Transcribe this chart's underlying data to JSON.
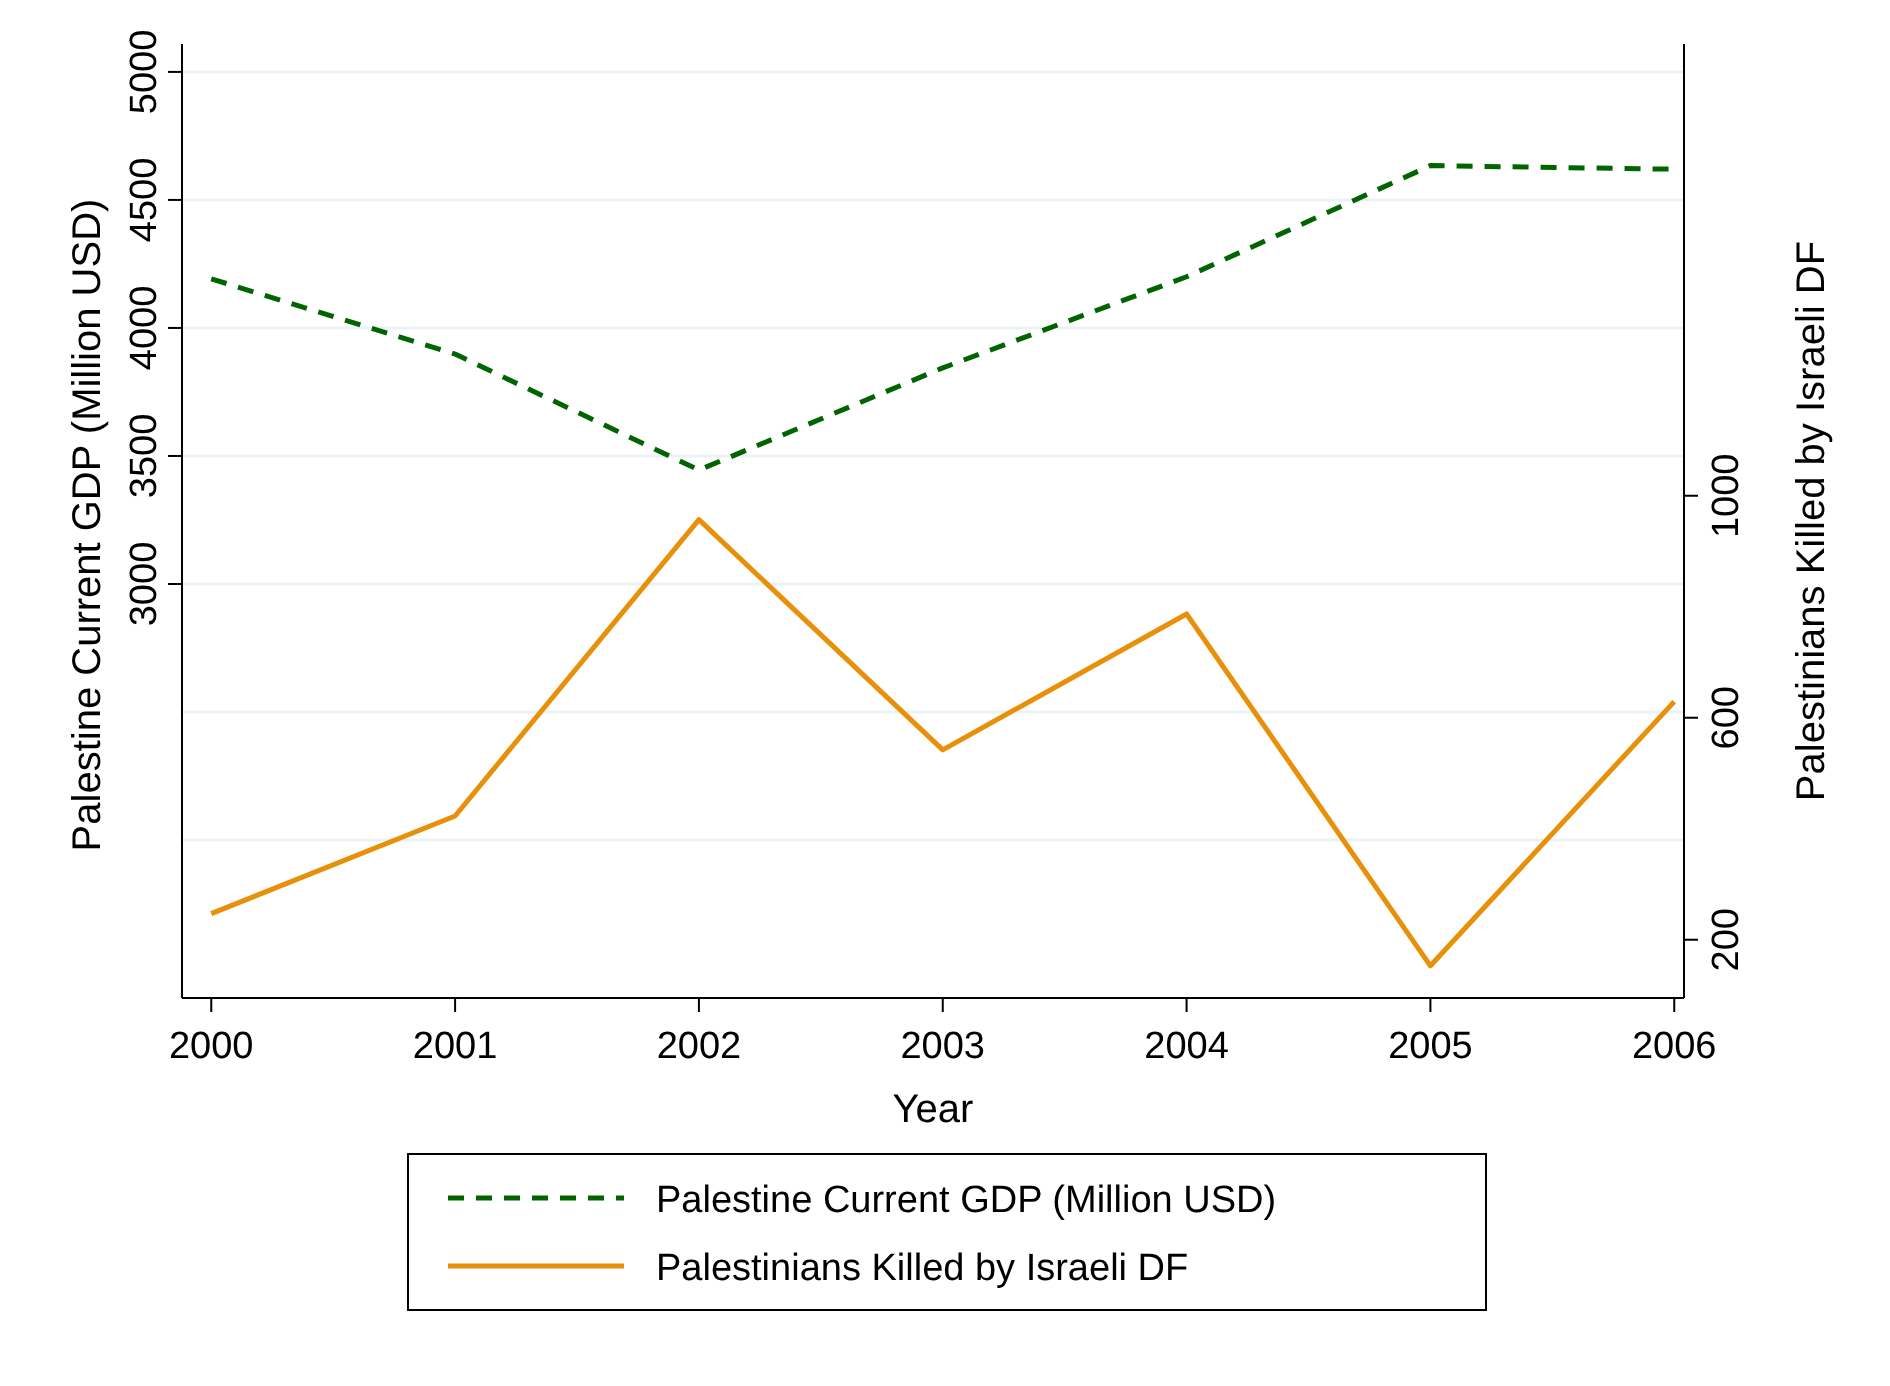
{
  "chart_data": {
    "type": "line",
    "xlabel": "Year",
    "ylabel": "Palestine Current GDP (Million USD)",
    "y2label": "Palestinians Killed by Israeli DF",
    "x": [
      2000,
      2001,
      2002,
      2003,
      2004,
      2005,
      2006
    ],
    "xlim": [
      1999.88,
      2006.04
    ],
    "xticks": [
      2000,
      2001,
      2002,
      2003,
      2004,
      2005,
      2006
    ],
    "ylim": [
      1383,
      5109
    ],
    "yticks": [
      {
        "value": 2000,
        "label": null
      },
      {
        "value": 2500,
        "label": null
      },
      3000,
      3500,
      4000,
      4500,
      5000
    ],
    "y2lim": [
      95,
      1814
    ],
    "y2ticks": [
      200,
      600,
      1000
    ],
    "grid": "y",
    "legend": "bottom",
    "series": [
      {
        "name": "Palestine Current GDP (Million USD)",
        "color": "#006400",
        "line_style": "dashed",
        "values": [
          4192,
          3898,
          3445,
          3844,
          4200,
          4634,
          4620
        ]
      },
      {
        "name": "Palestinians Killed by Israeli DF",
        "color": "#e8900a",
        "line_style": "solid",
        "axis": "y2",
        "values": [
          247,
          423,
          957,
          542,
          787,
          153,
          629
        ]
      }
    ]
  }
}
